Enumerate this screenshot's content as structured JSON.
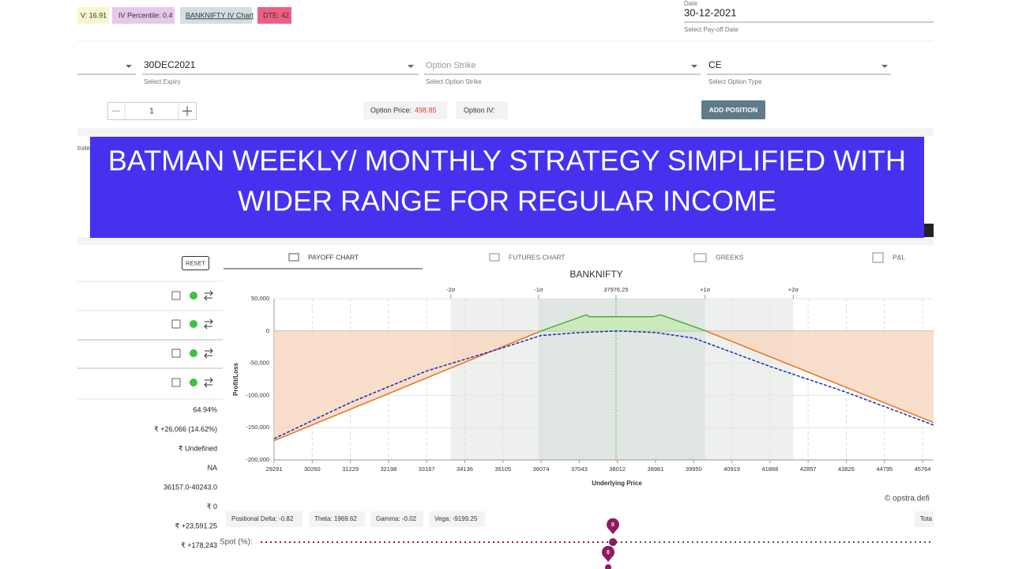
{
  "top_chips": [
    "V: 16.91",
    "IV Percentile: 0.4",
    "BANKNIFTY IV Chart",
    "DTE: 42"
  ],
  "date": {
    "label": "Date",
    "value": "30-12-2021",
    "hint": "Select Pay-off Date"
  },
  "expiry": {
    "value": "30DEC2021",
    "hint": "Select Expiry"
  },
  "strike": {
    "placeholder": "Option Strike",
    "hint": "Select Option Strike"
  },
  "option_type": {
    "value": "CE",
    "hint": "Select Option Type"
  },
  "lots": "1",
  "option_price": {
    "label": "Option Price:",
    "value": "498.85"
  },
  "option_iv": {
    "label": "Option IV:"
  },
  "add_button": "ADD POSITION",
  "partial_left": "trate",
  "banner": [
    "BATMAN WEEKLY/ MONTHLY STRATEGY SIMPLIFIED WITH",
    "WIDER RANGE FOR REGULAR INCOME"
  ],
  "reset": "RESET",
  "tabs": [
    "PAYOFF CHART",
    "FUTURES CHART",
    "GREEKS",
    "P&L"
  ],
  "stats": [
    "64.94%",
    "₹ +26,066 (14.62%)",
    "₹ Undefined",
    "NA",
    "36157.0-40243.0",
    "₹ 0",
    "₹ +23,591.25",
    "₹ +178,243"
  ],
  "chart_data": {
    "type": "line",
    "title": "BANKNIFTY",
    "xlabel": "Underlying Price",
    "ylabel": "Profit/Loss",
    "xlim": [
      29291,
      46044
    ],
    "ylim": [
      -200000,
      50000
    ],
    "xticks": [
      29291,
      30260,
      31229,
      32198,
      33167,
      34136,
      35105,
      36074,
      37043,
      38012,
      38981,
      39950,
      40919,
      41888,
      42857,
      43826,
      44795,
      45764
    ],
    "yticks": [
      {
        "value": 50000,
        "label": "50,000"
      },
      0,
      {
        "value": -50000,
        "label": "-50,000"
      },
      {
        "value": -100000,
        "label": "-100,000"
      },
      {
        "value": -150000,
        "label": "-150,000"
      },
      {
        "value": -200000,
        "label": "-200,000"
      }
    ],
    "top_ticks": [
      {
        "value": 33780,
        "label": "-2σ"
      },
      {
        "value": 36010,
        "label": "-1σ"
      },
      37976.25,
      {
        "value": 40240,
        "label": "+1σ"
      },
      {
        "value": 42480,
        "label": "+2σ"
      }
    ],
    "grid": true,
    "series": [
      {
        "color": "#e8731f",
        "profit_color": "#4caf34",
        "style": "solid",
        "x": [
          29291,
          36074,
          37223,
          37300,
          38920,
          39110,
          40260,
          46044
        ],
        "values": [
          -170000,
          0,
          25000,
          22000,
          22000,
          25000,
          0,
          -142000
        ]
      },
      {
        "color": "#1a2fb0",
        "style": "dashed",
        "x": [
          29291,
          31229,
          33167,
          35105,
          36074,
          37043,
          38012,
          38981,
          39950,
          41888,
          43826,
          46044
        ],
        "values": [
          -167000,
          -111000,
          -62000,
          -26000,
          -7000,
          -2500,
          0,
          -2500,
          -11000,
          -55000,
          -95000,
          -146000
        ]
      }
    ],
    "watermark": "© opstra.defi"
  },
  "greeks": [
    "Positional Delta: -0.82",
    "Theta: 1969.62",
    "Gamma: -0.02",
    "Vega: -9199.25"
  ],
  "total": "Tota",
  "spot_label": "Spot (%):",
  "spot_marker": "0",
  "iv_marker": "0"
}
